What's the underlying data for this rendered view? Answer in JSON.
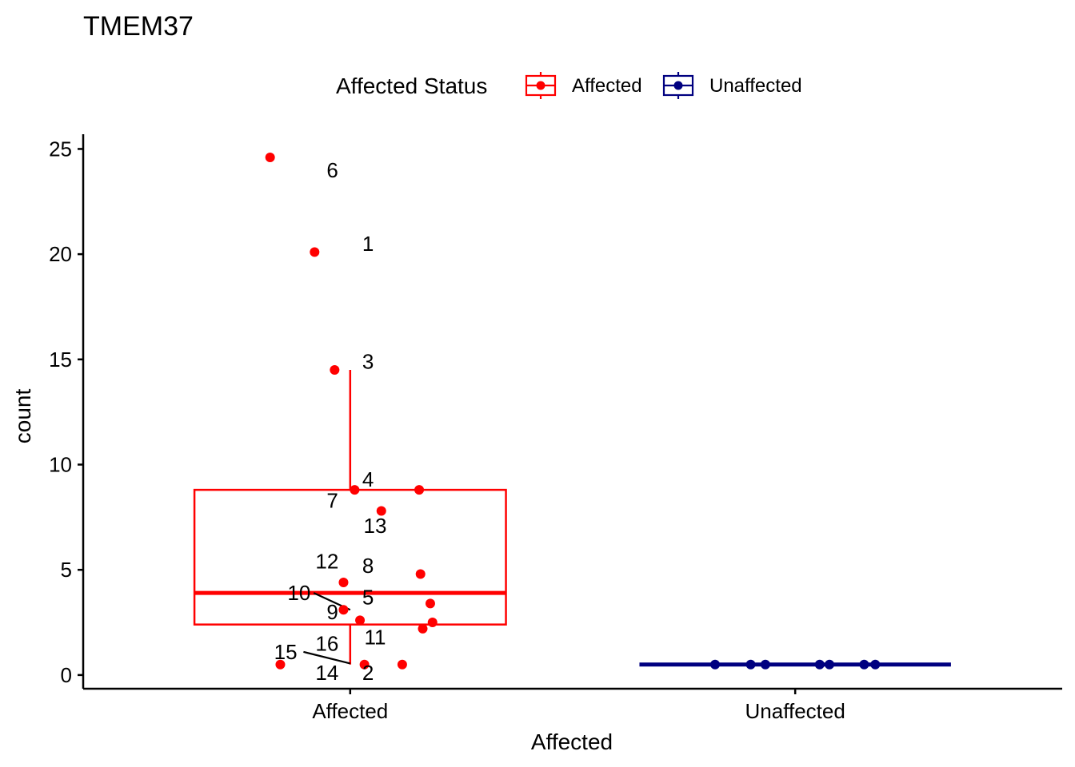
{
  "chart_data": {
    "type": "boxplot",
    "title": "TMEM37",
    "xlabel": "Affected",
    "ylabel": "count",
    "ylim": [
      -0.65,
      25.7
    ],
    "yticks": [
      0,
      5,
      10,
      15,
      20,
      25
    ],
    "categories": [
      "Affected",
      "Unaffected"
    ],
    "legend": {
      "title": "Affected Status",
      "position": "top",
      "entries": [
        {
          "label": "Affected",
          "color": "#ff0000"
        },
        {
          "label": "Unaffected",
          "color": "#000080"
        }
      ]
    },
    "boxes": [
      {
        "category": "Affected",
        "color": "#ff0000",
        "q1": 2.4,
        "median": 3.9,
        "q3": 8.8,
        "whisker_low": 0.5,
        "whisker_high": 14.5
      },
      {
        "category": "Unaffected",
        "color": "#000080",
        "q1": 0.5,
        "median": 0.5,
        "q3": 0.5,
        "whisker_low": 0.5,
        "whisker_high": 0.5
      }
    ],
    "points": [
      {
        "category": "Affected",
        "jitter": -0.18,
        "y": 24.6
      },
      {
        "category": "Affected",
        "jitter": -0.08,
        "y": 20.1
      },
      {
        "category": "Affected",
        "jitter": -0.035,
        "y": 14.5
      },
      {
        "category": "Affected",
        "jitter": 0.01,
        "y": 8.8
      },
      {
        "category": "Affected",
        "jitter": 0.155,
        "y": 8.8
      },
      {
        "category": "Affected",
        "jitter": 0.07,
        "y": 7.8
      },
      {
        "category": "Affected",
        "jitter": -0.015,
        "y": 4.4
      },
      {
        "category": "Affected",
        "jitter": 0.158,
        "y": 4.8
      },
      {
        "category": "Affected",
        "jitter": 0.18,
        "y": 3.4
      },
      {
        "category": "Affected",
        "jitter": -0.015,
        "y": 3.1
      },
      {
        "category": "Affected",
        "jitter": 0.022,
        "y": 2.6
      },
      {
        "category": "Affected",
        "jitter": 0.185,
        "y": 2.5
      },
      {
        "category": "Affected",
        "jitter": 0.163,
        "y": 2.2
      },
      {
        "category": "Affected",
        "jitter": -0.157,
        "y": 0.5
      },
      {
        "category": "Affected",
        "jitter": 0.032,
        "y": 0.5
      },
      {
        "category": "Affected",
        "jitter": 0.117,
        "y": 0.5
      },
      {
        "category": "Unaffected",
        "jitter": -0.18,
        "y": 0.5
      },
      {
        "category": "Unaffected",
        "jitter": -0.1,
        "y": 0.5
      },
      {
        "category": "Unaffected",
        "jitter": -0.067,
        "y": 0.5
      },
      {
        "category": "Unaffected",
        "jitter": 0.055,
        "y": 0.5
      },
      {
        "category": "Unaffected",
        "jitter": 0.077,
        "y": 0.5
      },
      {
        "category": "Unaffected",
        "jitter": 0.155,
        "y": 0.5
      },
      {
        "category": "Unaffected",
        "jitter": 0.18,
        "y": 0.5
      }
    ],
    "annotations": [
      {
        "text": "6",
        "category": "Affected",
        "dx": -0.04,
        "y": 24.0
      },
      {
        "text": "1",
        "category": "Affected",
        "dx": 0.04,
        "y": 20.5
      },
      {
        "text": "3",
        "category": "Affected",
        "dx": 0.04,
        "y": 14.9
      },
      {
        "text": "4",
        "category": "Affected",
        "dx": 0.04,
        "y": 9.3
      },
      {
        "text": "7",
        "category": "Affected",
        "dx": -0.04,
        "y": 8.3
      },
      {
        "text": "13",
        "category": "Affected",
        "dx": 0.056,
        "y": 7.1
      },
      {
        "text": "12",
        "category": "Affected",
        "dx": -0.052,
        "y": 5.4
      },
      {
        "text": "8",
        "category": "Affected",
        "dx": 0.04,
        "y": 5.2
      },
      {
        "text": "10",
        "category": "Affected",
        "dx": -0.115,
        "y": 3.9
      },
      {
        "text": "5",
        "category": "Affected",
        "dx": 0.04,
        "y": 3.7
      },
      {
        "text": "9",
        "category": "Affected",
        "dx": -0.04,
        "y": 3.0
      },
      {
        "text": "11",
        "category": "Affected",
        "dx": 0.056,
        "y": 1.8
      },
      {
        "text": "16",
        "category": "Affected",
        "dx": -0.052,
        "y": 1.5
      },
      {
        "text": "15",
        "category": "Affected",
        "dx": -0.145,
        "y": 1.1
      },
      {
        "text": "14",
        "category": "Affected",
        "dx": -0.052,
        "y": 0.1
      },
      {
        "text": "2",
        "category": "Affected",
        "dx": 0.04,
        "y": 0.1
      }
    ],
    "connectors": [
      {
        "category": "Affected",
        "x1": -0.082,
        "y1": 3.9,
        "x2": 0.0,
        "y2": 3.1
      },
      {
        "category": "Affected",
        "x1": -0.105,
        "y1": 1.1,
        "x2": 0.0,
        "y2": 0.55
      }
    ]
  }
}
